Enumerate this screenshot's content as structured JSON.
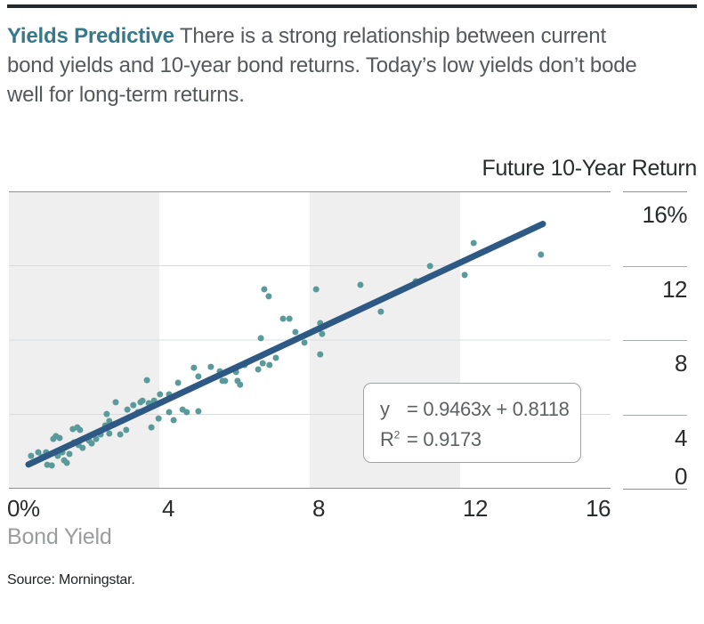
{
  "header": {
    "title": "Yields Predictive",
    "subtitle": "There is a strong relationship between current bond yields and 10-year bond returns. Today’s low yields don’t bode well for long-term returns.",
    "subtitle_lines": [
      "There is a strong relationship between current",
      "bond yields and 10-year bond returns. Today’s low yields don’t bode",
      "well for long-term returns."
    ]
  },
  "source": "Source: Morningstar.",
  "colors": {
    "top_rule": "#23282d",
    "title_teal": "#36798a",
    "text_gray": "#55585c",
    "label_dark": "#292b2d",
    "label_muted": "#9b9c9e",
    "source_color": "#212325",
    "band": "#efefef",
    "grid_light": "#dadbdc",
    "grid_dark": "#8f9193",
    "tick_line_light": "#a8a9ab",
    "dot": "#5b9a9b",
    "trend_line": "#2d5984",
    "equation_text": "#5e6062",
    "equation_border": "#a0a2a4"
  },
  "chart_data": {
    "type": "scatter",
    "title": "Yields Predictive",
    "xlabel": "Bond Yield",
    "ylabel": "Future 10-Year Return",
    "xlim": [
      0,
      16
    ],
    "ylim": [
      0,
      16
    ],
    "grid": "horizontal",
    "x_ticks": [
      {
        "v": 0,
        "label": "0%"
      },
      {
        "v": 4,
        "label": "4"
      },
      {
        "v": 8,
        "label": "8"
      },
      {
        "v": 12,
        "label": "12"
      },
      {
        "v": 16,
        "label": "16"
      }
    ],
    "y_ticks": [
      {
        "v": 16,
        "label": "16%"
      },
      {
        "v": 12,
        "label": "12"
      },
      {
        "v": 8,
        "label": "8"
      },
      {
        "v": 4,
        "label": "4"
      },
      {
        "v": 0,
        "label": "0"
      }
    ],
    "shaded_x_bands": [
      [
        0,
        4
      ],
      [
        8,
        12
      ]
    ],
    "points": [
      [
        0.59,
        1.77
      ],
      [
        0.78,
        1.96
      ],
      [
        0.88,
        1.72
      ],
      [
        0.99,
        1.96
      ],
      [
        1.02,
        1.29
      ],
      [
        1.14,
        1.25
      ],
      [
        1.18,
        2.68
      ],
      [
        1.25,
        2.83
      ],
      [
        1.35,
        2.73
      ],
      [
        1.3,
        1.77
      ],
      [
        1.42,
        1.96
      ],
      [
        1.47,
        1.53
      ],
      [
        1.54,
        1.39
      ],
      [
        1.61,
        1.87
      ],
      [
        1.7,
        3.21
      ],
      [
        1.82,
        3.3
      ],
      [
        1.89,
        3.16
      ],
      [
        1.73,
        2.49
      ],
      [
        1.85,
        2.35
      ],
      [
        1.96,
        2.2
      ],
      [
        2.13,
        2.59
      ],
      [
        2.2,
        2.44
      ],
      [
        2.32,
        2.68
      ],
      [
        2.44,
        2.92
      ],
      [
        2.56,
        3.4
      ],
      [
        2.67,
        2.97
      ],
      [
        2.79,
        3.45
      ],
      [
        2.96,
        2.92
      ],
      [
        3.12,
        3.16
      ],
      [
        2.6,
        4.02
      ],
      [
        2.67,
        3.64
      ],
      [
        2.84,
        4.65
      ],
      [
        3.15,
        4.26
      ],
      [
        3.31,
        4.5
      ],
      [
        3.43,
        4.12
      ],
      [
        3.5,
        4.65
      ],
      [
        3.67,
        5.84
      ],
      [
        3.55,
        4.74
      ],
      [
        3.72,
        4.6
      ],
      [
        3.86,
        4.74
      ],
      [
        3.79,
        3.3
      ],
      [
        3.98,
        3.78
      ],
      [
        4.02,
        5.08
      ],
      [
        4.26,
        5.08
      ],
      [
        4.26,
        4.12
      ],
      [
        4.38,
        3.69
      ],
      [
        4.5,
        5.7
      ],
      [
        4.62,
        4.26
      ],
      [
        4.73,
        4.12
      ],
      [
        4.92,
        6.51
      ],
      [
        5.04,
        6.04
      ],
      [
        5.04,
        4.17
      ],
      [
        5.37,
        6.56
      ],
      [
        5.61,
        6.32
      ],
      [
        5.68,
        5.8
      ],
      [
        5.75,
        5.8
      ],
      [
        6.04,
        6.28
      ],
      [
        6.08,
        5.8
      ],
      [
        6.15,
        5.6
      ],
      [
        6.27,
        6.66
      ],
      [
        6.63,
        6.42
      ],
      [
        6.75,
        6.75
      ],
      [
        6.93,
        6.66
      ],
      [
        7.1,
        7.04
      ],
      [
        6.7,
        8.1
      ],
      [
        6.79,
        10.73
      ],
      [
        6.91,
        10.35
      ],
      [
        7.29,
        9.15
      ],
      [
        7.46,
        9.15
      ],
      [
        7.62,
        8.43
      ],
      [
        7.86,
        7.86
      ],
      [
        8.17,
        10.73
      ],
      [
        8.28,
        8.91
      ],
      [
        8.33,
        8.33
      ],
      [
        8.28,
        7.23
      ],
      [
        9.35,
        10.97
      ],
      [
        9.89,
        9.53
      ],
      [
        10.82,
        11.16
      ],
      [
        11.2,
        11.98
      ],
      [
        12.12,
        11.5
      ],
      [
        12.36,
        13.22
      ],
      [
        14.15,
        12.6
      ]
    ],
    "trend": {
      "slope": 0.9463,
      "intercept": 0.8118,
      "r_squared": 0.9173,
      "x_start": 0.52,
      "x_end": 14.2,
      "eq_lhs": "y",
      "eq_rhs": "= 0.9463x + 0.8118",
      "r2_base": "R",
      "r2_sup": "2",
      "r2_rhs": "= 0.9173"
    }
  }
}
